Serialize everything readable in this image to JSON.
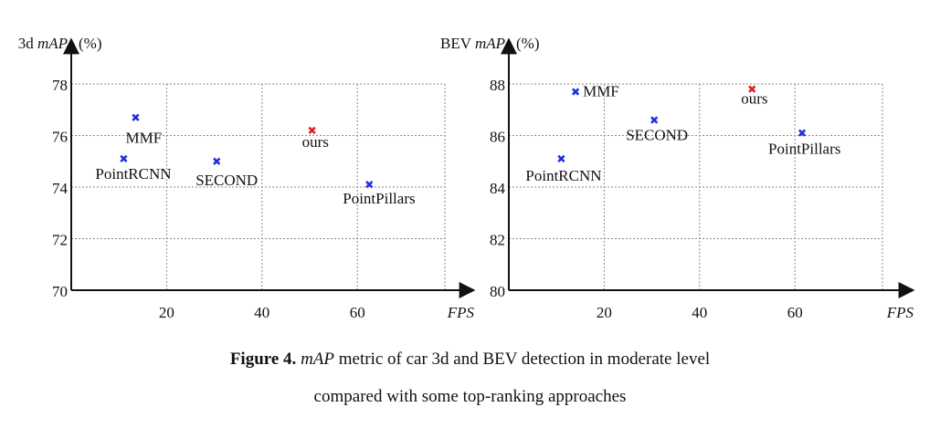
{
  "chart_data": [
    {
      "type": "scatter",
      "ylabel_prefix": "3d",
      "ylabel_metric": "mAP",
      "ylabel_unit": "(%)",
      "xlabel": "FPS",
      "x_ticks": [
        20,
        40,
        60
      ],
      "y_ticks": [
        70,
        72,
        74,
        76,
        78
      ],
      "grid": true,
      "points": [
        {
          "label": "MMF",
          "x": 13.5,
          "y": 76.7,
          "color": "#1f2fe0"
        },
        {
          "label": "PointRCNN",
          "x": 11,
          "y": 75.1,
          "color": "#1f2fe0"
        },
        {
          "label": "SECOND",
          "x": 30.5,
          "y": 75.0,
          "color": "#1f2fe0"
        },
        {
          "label": "ours",
          "x": 50.5,
          "y": 76.2,
          "color": "#e02020"
        },
        {
          "label": "PointPillars",
          "x": 62.5,
          "y": 74.1,
          "color": "#1f2fe0"
        }
      ]
    },
    {
      "type": "scatter",
      "ylabel_prefix": "BEV",
      "ylabel_metric": "mAP",
      "ylabel_unit": "(%)",
      "xlabel": "FPS",
      "x_ticks": [
        20,
        40,
        60
      ],
      "y_ticks": [
        80,
        82,
        84,
        86,
        88
      ],
      "grid": true,
      "points": [
        {
          "label": "MMF",
          "x": 14,
          "y": 87.7,
          "color": "#1f2fe0"
        },
        {
          "label": "PointRCNN",
          "x": 11,
          "y": 85.1,
          "color": "#1f2fe0"
        },
        {
          "label": "SECOND",
          "x": 30.5,
          "y": 86.6,
          "color": "#1f2fe0"
        },
        {
          "label": "ours",
          "x": 51,
          "y": 87.8,
          "color": "#e02020"
        },
        {
          "label": "PointPillars",
          "x": 61.5,
          "y": 86.1,
          "color": "#1f2fe0"
        }
      ]
    }
  ],
  "caption": {
    "figure_label": "Figure 4.",
    "metric": "mAP",
    "line1_rest": " metric of car 3d and BEV detection in moderate level",
    "line2": "compared with some top-ranking approaches"
  }
}
